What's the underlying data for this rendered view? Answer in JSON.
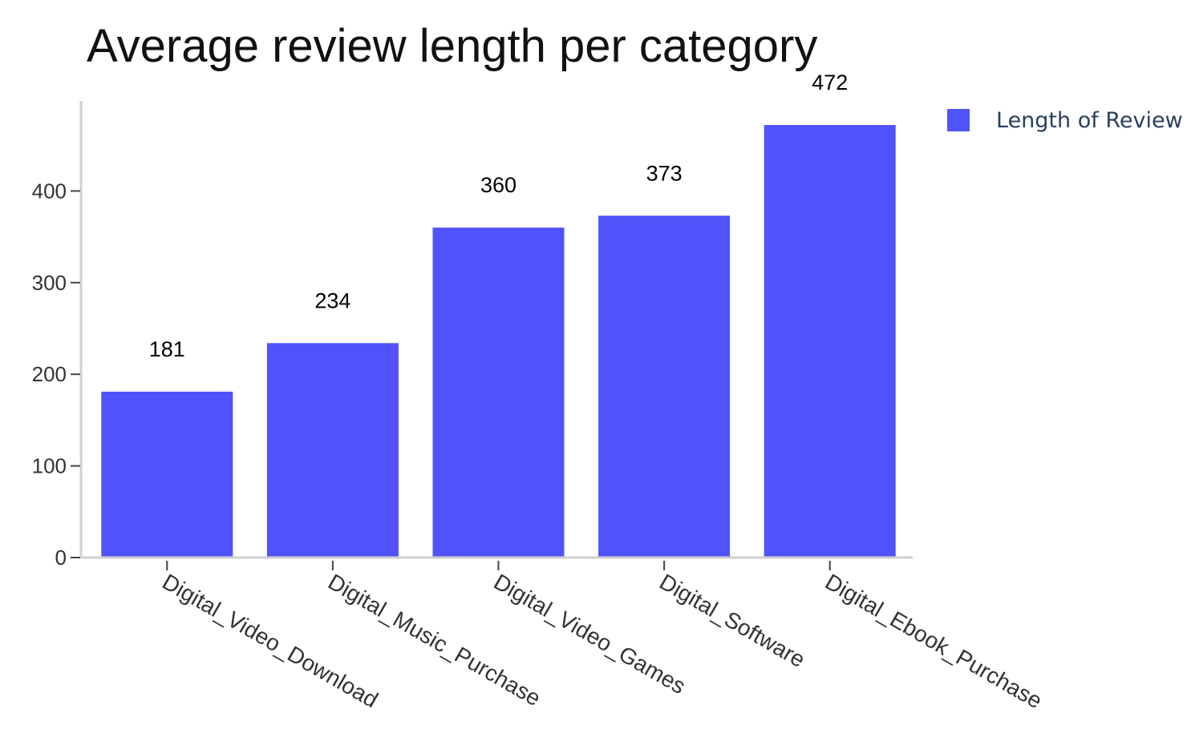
{
  "chart_data": {
    "type": "bar",
    "title": "Average review length per category",
    "categories": [
      "Digital_Video_Download",
      "Digital_Music_Purchase",
      "Digital_Video_Games",
      "Digital_Software",
      "Digital_Ebook_Purchase"
    ],
    "series": [
      {
        "name": "Length of Review",
        "values": [
          181,
          234,
          360,
          373,
          472
        ],
        "color": "#5053f9"
      }
    ],
    "data_labels": [
      "181",
      "234",
      "360",
      "373",
      "472"
    ],
    "y_ticks": [
      0,
      100,
      200,
      300,
      400
    ],
    "ylim": [
      0,
      490
    ],
    "xlabel": "",
    "ylabel": "",
    "grid": false,
    "legend_position": "top-right"
  }
}
